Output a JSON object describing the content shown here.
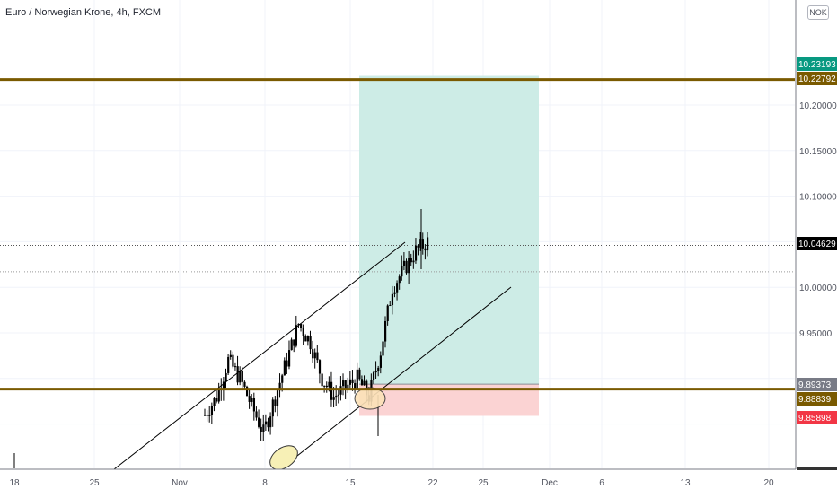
{
  "header": {
    "title": "Euro / Norwegian Krone, 4h, FXCM",
    "currency": "NOK"
  },
  "chart_data": {
    "type": "candlestick",
    "symbol": "Euro / Norwegian Krone",
    "timeframe": "4h",
    "source": "FXCM",
    "y_axis": {
      "ticks": [
        "10.20000",
        "10.15000",
        "10.10000",
        "10.00000",
        "9.95000"
      ],
      "range": [
        9.82,
        10.26
      ]
    },
    "x_axis": {
      "ticks": [
        "18",
        "25",
        "Nov",
        "8",
        "15",
        "22",
        "25",
        "Dec",
        "6",
        "13",
        "20"
      ]
    },
    "price_labels": {
      "take_profit": "10.23193",
      "resistance": "10.22792",
      "last_price": "10.04629",
      "entry": "9.89373",
      "support": "9.88839",
      "stop_loss": "9.85898"
    },
    "horizontal_levels": [
      10.22792,
      9.88839
    ],
    "position": {
      "entry": 9.89373,
      "take_profit": 10.23193,
      "stop_loss": 9.85898
    },
    "candles": {
      "summary": "4h candles from mid-October to Nov 19; uptrend channel, breakout above 9.95 to ~10.09 high, last close ~10.046",
      "anchor_closes": [
        9.86,
        9.88,
        9.92,
        9.9,
        9.87,
        9.84,
        9.88,
        9.92,
        9.96,
        9.94,
        9.9,
        9.88,
        9.89,
        9.9,
        9.88,
        9.93,
        10.0,
        10.02,
        10.04,
        10.05
      ]
    },
    "colors": {
      "level": "#7a5a00",
      "take_profit_zone": "#cdece6",
      "stop_loss_zone": "#fbd3d3",
      "candle": "#000000",
      "last_price_badge": "#000000",
      "take_profit_badge": "#089981",
      "stop_loss_badge": "#f23645",
      "entry_badge": "#787b86",
      "level_badge": "#7a5a00"
    }
  }
}
